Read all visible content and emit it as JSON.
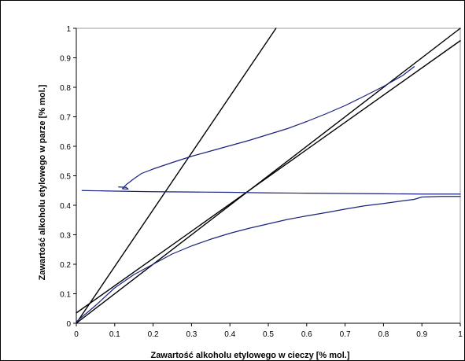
{
  "chart_data": {
    "type": "line",
    "title": "",
    "xlabel": "Zawartość alkoholu etylowego w cieczy  [% mol.]",
    "ylabel": "Zawartość alkoholu etylowego w parze  [% mol.]",
    "xlim": [
      0,
      1
    ],
    "ylim": [
      0,
      1
    ],
    "xticks": [
      "0",
      "0.1",
      "0.2",
      "0.3",
      "0.4",
      "0.5",
      "0.6",
      "0.7",
      "0.8",
      "0.9",
      "1"
    ],
    "yticks": [
      "0",
      "0.1",
      "0.2",
      "0.3",
      "0.4",
      "0.5",
      "0.6",
      "0.7",
      "0.8",
      "0.9",
      "1"
    ],
    "grid": false,
    "legend": "none",
    "series": [
      {
        "color": "#000000",
        "points": [
          [
            0,
            0
          ],
          [
            1,
            1
          ]
        ]
      },
      {
        "color": "#000000",
        "points": [
          [
            0,
            0
          ],
          [
            0.52,
            1
          ]
        ]
      },
      {
        "color": "#000000",
        "points": [
          [
            0,
            0.035
          ],
          [
            1,
            0.958
          ]
        ]
      },
      {
        "color": "#1a237e",
        "points": [
          [
            0,
            0.005
          ],
          [
            0.05,
            0.06
          ],
          [
            0.1,
            0.12
          ],
          [
            0.15,
            0.165
          ],
          [
            0.2,
            0.2
          ],
          [
            0.25,
            0.235
          ],
          [
            0.3,
            0.262
          ],
          [
            0.35,
            0.285
          ],
          [
            0.4,
            0.305
          ],
          [
            0.45,
            0.322
          ],
          [
            0.5,
            0.337
          ],
          [
            0.55,
            0.352
          ],
          [
            0.6,
            0.364
          ],
          [
            0.65,
            0.375
          ],
          [
            0.7,
            0.387
          ],
          [
            0.75,
            0.398
          ],
          [
            0.8,
            0.406
          ],
          [
            0.85,
            0.415
          ],
          [
            0.88,
            0.42
          ],
          [
            0.9,
            0.428
          ],
          [
            0.95,
            0.43
          ],
          [
            1,
            0.43
          ]
        ]
      },
      {
        "color": "#1a237e",
        "points": [
          [
            0.015,
            0.45
          ],
          [
            0.1,
            0.448
          ],
          [
            0.2,
            0.446
          ],
          [
            0.3,
            0.445
          ],
          [
            0.4,
            0.444
          ],
          [
            0.5,
            0.442
          ],
          [
            0.6,
            0.441
          ],
          [
            0.7,
            0.44
          ],
          [
            0.8,
            0.439
          ],
          [
            0.9,
            0.438
          ],
          [
            1,
            0.438
          ]
        ]
      },
      {
        "color": "#1a237e",
        "points": [
          [
            0.11,
            0.462
          ],
          [
            0.13,
            0.461
          ],
          [
            0.135,
            0.455
          ],
          [
            0.12,
            0.456
          ],
          [
            0.13,
            0.47
          ],
          [
            0.15,
            0.49
          ],
          [
            0.17,
            0.508
          ],
          [
            0.2,
            0.523
          ],
          [
            0.25,
            0.545
          ],
          [
            0.3,
            0.566
          ],
          [
            0.35,
            0.584
          ],
          [
            0.4,
            0.602
          ],
          [
            0.45,
            0.62
          ],
          [
            0.5,
            0.64
          ],
          [
            0.55,
            0.66
          ],
          [
            0.6,
            0.684
          ],
          [
            0.65,
            0.71
          ],
          [
            0.7,
            0.738
          ],
          [
            0.75,
            0.77
          ],
          [
            0.8,
            0.803
          ],
          [
            0.85,
            0.84
          ],
          [
            0.88,
            0.87
          ]
        ]
      }
    ]
  }
}
